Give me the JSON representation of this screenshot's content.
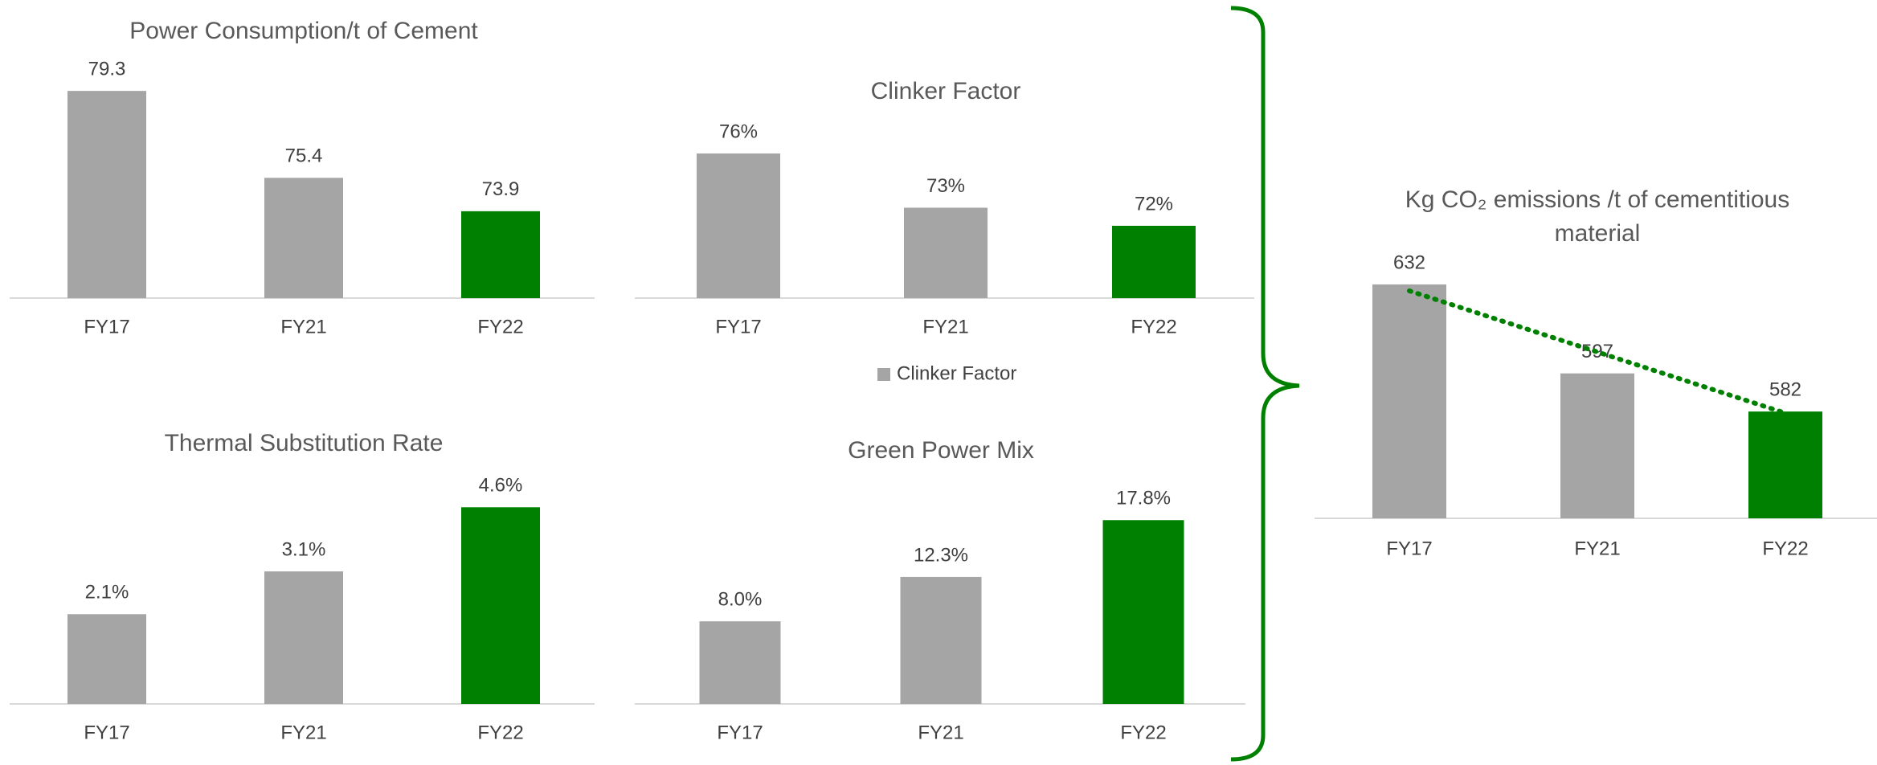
{
  "chart_data": [
    {
      "type": "bar",
      "title": "Power Consumption/t of Cement",
      "categories": [
        "FY17",
        "FY21",
        "FY22"
      ],
      "colors": [
        "#a5a5a5",
        "#a5a5a5",
        "#008000"
      ],
      "ylim": [
        70,
        81
      ],
      "series": [
        {
          "values": [
            79.3,
            75.4,
            73.9
          ]
        }
      ]
    },
    {
      "type": "bar",
      "title": "Clinker Factor",
      "categories": [
        "FY17",
        "FY21",
        "FY22"
      ],
      "colors": [
        "#a5a5a5",
        "#a5a5a5",
        "#008000"
      ],
      "ylim": [
        68,
        78
      ],
      "legend": "bottom",
      "series": [
        {
          "name": "Clinker Factor",
          "color": "#a5a5a5",
          "values": [
            76,
            73,
            72
          ],
          "value_labels": [
            "76%",
            "73%",
            "72%"
          ]
        }
      ]
    },
    {
      "type": "bar",
      "title": "Thermal Substitution Rate",
      "categories": [
        "FY17",
        "FY21",
        "FY22"
      ],
      "colors": [
        "#a5a5a5",
        "#a5a5a5",
        "#008000"
      ],
      "ylim": [
        0,
        5
      ],
      "series": [
        {
          "values": [
            2.1,
            3.1,
            4.6
          ],
          "value_labels": [
            "2.1%",
            "3.1%",
            "4.6%"
          ]
        }
      ]
    },
    {
      "type": "bar",
      "title": "Green Power Mix",
      "categories": [
        "FY17",
        "FY21",
        "FY22"
      ],
      "colors": [
        "#a5a5a5",
        "#a5a5a5",
        "#008000"
      ],
      "ylim": [
        0,
        20
      ],
      "series": [
        {
          "values": [
            8.0,
            12.3,
            17.8
          ],
          "value_labels": [
            "8.0%",
            "12.3%",
            "17.8%"
          ]
        }
      ]
    },
    {
      "type": "bar",
      "title": "Kg CO₂ emissions /t of cementitious material",
      "categories": [
        "FY17",
        "FY21",
        "FY22"
      ],
      "colors": [
        "#a5a5a5",
        "#a5a5a5",
        "#008000"
      ],
      "ylim": [
        540,
        650
      ],
      "trendline": true,
      "trendline_color": "#008000",
      "series": [
        {
          "values": [
            632,
            597,
            582
          ]
        }
      ]
    }
  ]
}
